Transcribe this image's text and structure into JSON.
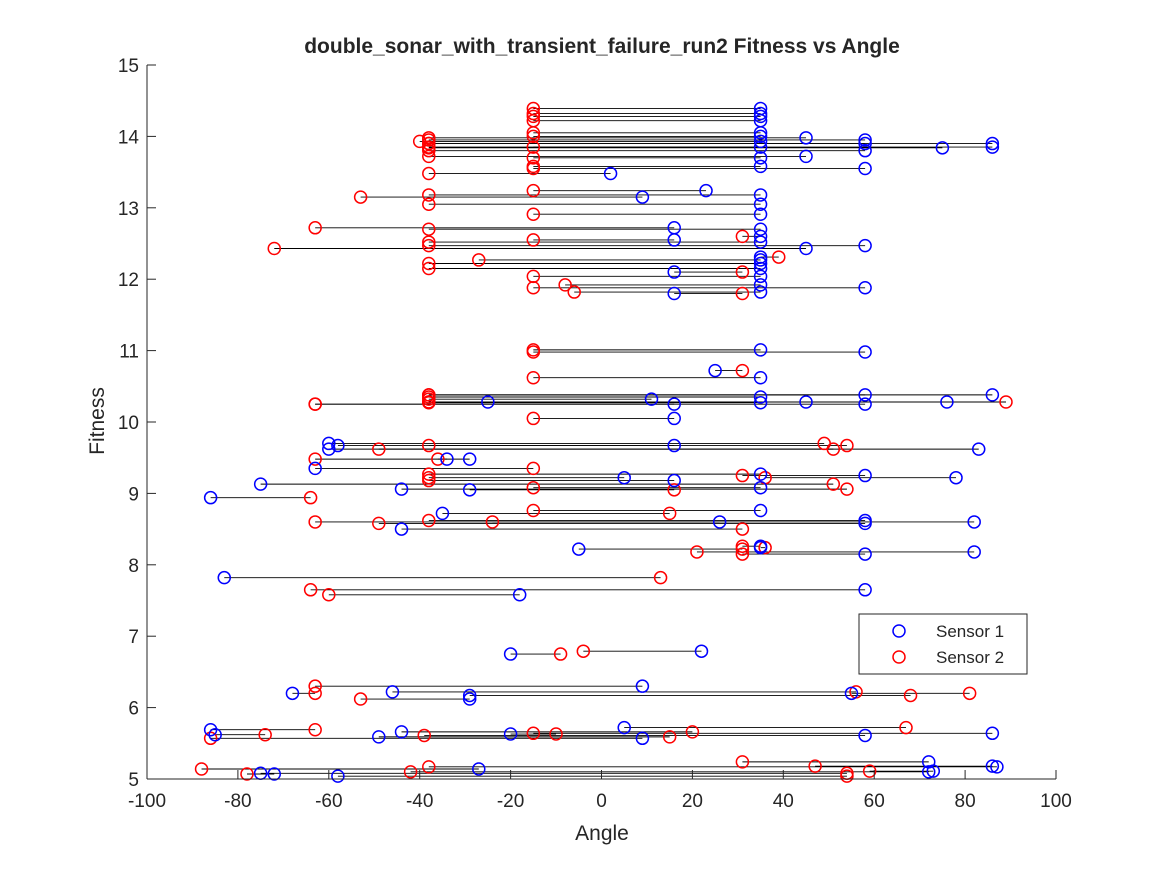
{
  "chart_data": {
    "type": "scatter",
    "title": "double_sonar_with_transient_failure_run2 Fitness vs Angle",
    "xlabel": "Angle",
    "ylabel": "Fitness",
    "xlim": [
      -100,
      100
    ],
    "ylim": [
      5,
      15
    ],
    "xticks": [
      -100,
      -80,
      -60,
      -40,
      -20,
      0,
      20,
      40,
      60,
      80,
      100
    ],
    "yticks": [
      5,
      6,
      7,
      8,
      9,
      10,
      11,
      12,
      13,
      14,
      15
    ],
    "grid": false,
    "legend_placement": "east-lower",
    "legend": [
      {
        "label": "Sensor 1",
        "color": "#0000ff"
      },
      {
        "label": "Sensor 2",
        "color": "#ff0000"
      }
    ],
    "pairs": [
      [
        35,
        14.39,
        -15,
        14.39
      ],
      [
        35,
        14.32,
        -15,
        14.32
      ],
      [
        35,
        14.28,
        -15,
        14.28
      ],
      [
        35,
        14.22,
        -15,
        14.22
      ],
      [
        35,
        14.05,
        -15,
        14.05
      ],
      [
        35,
        14.0,
        -15,
        14.0
      ],
      [
        45,
        13.98,
        -38,
        13.98
      ],
      [
        58,
        13.95,
        -38,
        13.95
      ],
      [
        35,
        13.93,
        -40,
        13.93
      ],
      [
        58,
        13.9,
        -38,
        13.9
      ],
      [
        86,
        13.9,
        -38,
        13.9
      ],
      [
        86,
        13.85,
        -38,
        13.85
      ],
      [
        35,
        13.85,
        -15,
        13.85
      ],
      [
        75,
        13.84,
        -38,
        13.84
      ],
      [
        58,
        13.8,
        -38,
        13.8
      ],
      [
        45,
        13.72,
        -38,
        13.72
      ],
      [
        35,
        13.7,
        -15,
        13.7
      ],
      [
        35,
        13.58,
        -15,
        13.58
      ],
      [
        58,
        13.55,
        -15,
        13.55
      ],
      [
        2,
        13.48,
        -38,
        13.48
      ],
      [
        23,
        13.24,
        -15,
        13.24
      ],
      [
        35,
        13.18,
        -38,
        13.18
      ],
      [
        9,
        13.15,
        -53,
        13.15
      ],
      [
        35,
        13.05,
        -38,
        13.05
      ],
      [
        35,
        12.91,
        -15,
        12.91
      ],
      [
        16,
        12.72,
        -63,
        12.72
      ],
      [
        35,
        12.7,
        -38,
        12.7
      ],
      [
        35,
        12.6,
        31,
        12.6
      ],
      [
        16,
        12.55,
        -15,
        12.55
      ],
      [
        35,
        12.52,
        -38,
        12.52
      ],
      [
        58,
        12.47,
        -38,
        12.47
      ],
      [
        45,
        12.43,
        -72,
        12.43
      ],
      [
        35,
        12.31,
        39,
        12.31
      ],
      [
        35,
        12.27,
        -27,
        12.27
      ],
      [
        35,
        12.22,
        -38,
        12.22
      ],
      [
        35,
        12.15,
        -38,
        12.15
      ],
      [
        16,
        12.1,
        31,
        12.1
      ],
      [
        35,
        12.04,
        -15,
        12.04
      ],
      [
        35,
        11.92,
        -8,
        11.92
      ],
      [
        58,
        11.88,
        -15,
        11.88
      ],
      [
        35,
        11.82,
        -6,
        11.82
      ],
      [
        16,
        11.8,
        31,
        11.8
      ],
      [
        35,
        11.01,
        -15,
        11.01
      ],
      [
        58,
        10.98,
        -15,
        10.98
      ],
      [
        25,
        10.72,
        31,
        10.72
      ],
      [
        35,
        10.62,
        -15,
        10.62
      ],
      [
        86,
        10.38,
        -38,
        10.38
      ],
      [
        58,
        10.38,
        -38,
        10.38
      ],
      [
        35,
        10.35,
        -38,
        10.35
      ],
      [
        11,
        10.32,
        -38,
        10.32
      ],
      [
        -25,
        10.28,
        89,
        10.28
      ],
      [
        45,
        10.28,
        -38,
        10.28
      ],
      [
        76,
        10.28,
        -38,
        10.28
      ],
      [
        16,
        10.25,
        -63,
        10.25
      ],
      [
        58,
        10.25,
        -63,
        10.25
      ],
      [
        35,
        10.27,
        -38,
        10.27
      ],
      [
        16,
        10.05,
        -15,
        10.05
      ],
      [
        -60,
        9.7,
        49,
        9.7
      ],
      [
        -58,
        9.67,
        54,
        9.67
      ],
      [
        16,
        9.67,
        -38,
        9.67
      ],
      [
        83,
        9.62,
        -49,
        9.62
      ],
      [
        -60,
        9.62,
        51,
        9.62
      ],
      [
        -29,
        9.48,
        -63,
        9.48
      ],
      [
        -34,
        9.48,
        -36,
        9.48
      ],
      [
        -63,
        9.35,
        -15,
        9.35
      ],
      [
        35,
        9.27,
        -38,
        9.27
      ],
      [
        58,
        9.25,
        31,
        9.25
      ],
      [
        5,
        9.22,
        -38,
        9.22
      ],
      [
        78,
        9.22,
        36,
        9.22
      ],
      [
        16,
        9.18,
        -38,
        9.18
      ],
      [
        -75,
        9.13,
        51,
        9.13
      ],
      [
        35,
        9.08,
        -15,
        9.08
      ],
      [
        -44,
        9.06,
        54,
        9.06
      ],
      [
        -29,
        9.05,
        16,
        9.05
      ],
      [
        -86,
        8.94,
        -64,
        8.94
      ],
      [
        35,
        8.76,
        -15,
        8.76
      ],
      [
        -35,
        8.72,
        15,
        8.72
      ],
      [
        58,
        8.62,
        -38,
        8.62
      ],
      [
        26,
        8.6,
        -24,
        8.6
      ],
      [
        82,
        8.6,
        -63,
        8.6
      ],
      [
        58,
        8.58,
        -49,
        8.58
      ],
      [
        -44,
        8.5,
        31,
        8.5
      ],
      [
        35,
        8.26,
        31,
        8.26
      ],
      [
        35,
        8.24,
        36,
        8.24
      ],
      [
        -5,
        8.22,
        31,
        8.22
      ],
      [
        82,
        8.18,
        21,
        8.18
      ],
      [
        58,
        8.15,
        31,
        8.15
      ],
      [
        -83,
        7.82,
        13,
        7.82
      ],
      [
        58,
        7.65,
        -64,
        7.65
      ],
      [
        -18,
        7.58,
        -60,
        7.58
      ],
      [
        22,
        6.79,
        -4,
        6.79
      ],
      [
        -20,
        6.75,
        -9,
        6.75
      ],
      [
        9,
        6.3,
        -63,
        6.3
      ],
      [
        -46,
        6.22,
        56,
        6.22
      ],
      [
        55,
        6.2,
        81,
        6.2
      ],
      [
        -29,
        6.17,
        68,
        6.17
      ],
      [
        -68,
        6.2,
        -63,
        6.2
      ],
      [
        -29,
        6.12,
        -53,
        6.12
      ],
      [
        5,
        5.72,
        67,
        5.72
      ],
      [
        -86,
        5.69,
        -63,
        5.69
      ],
      [
        86,
        5.64,
        -15,
        5.64
      ],
      [
        -44,
        5.66,
        20,
        5.66
      ],
      [
        -20,
        5.63,
        -10,
        5.63
      ],
      [
        -85,
        5.62,
        -74,
        5.62
      ],
      [
        58,
        5.61,
        -39,
        5.61
      ],
      [
        -49,
        5.59,
        15,
        5.59
      ],
      [
        9,
        5.57,
        -86,
        5.57
      ],
      [
        72,
        5.24,
        31,
        5.24
      ],
      [
        86,
        5.18,
        47,
        5.18
      ],
      [
        87,
        5.17,
        -38,
        5.17
      ],
      [
        -27,
        5.14,
        -88,
        5.14
      ],
      [
        73,
        5.11,
        59,
        5.11
      ],
      [
        -75,
        5.08,
        54,
        5.08
      ],
      [
        -72,
        5.07,
        -78,
        5.07
      ],
      [
        72,
        5.1,
        -42,
        5.1
      ],
      [
        -58,
        5.04,
        54,
        5.04
      ]
    ]
  }
}
